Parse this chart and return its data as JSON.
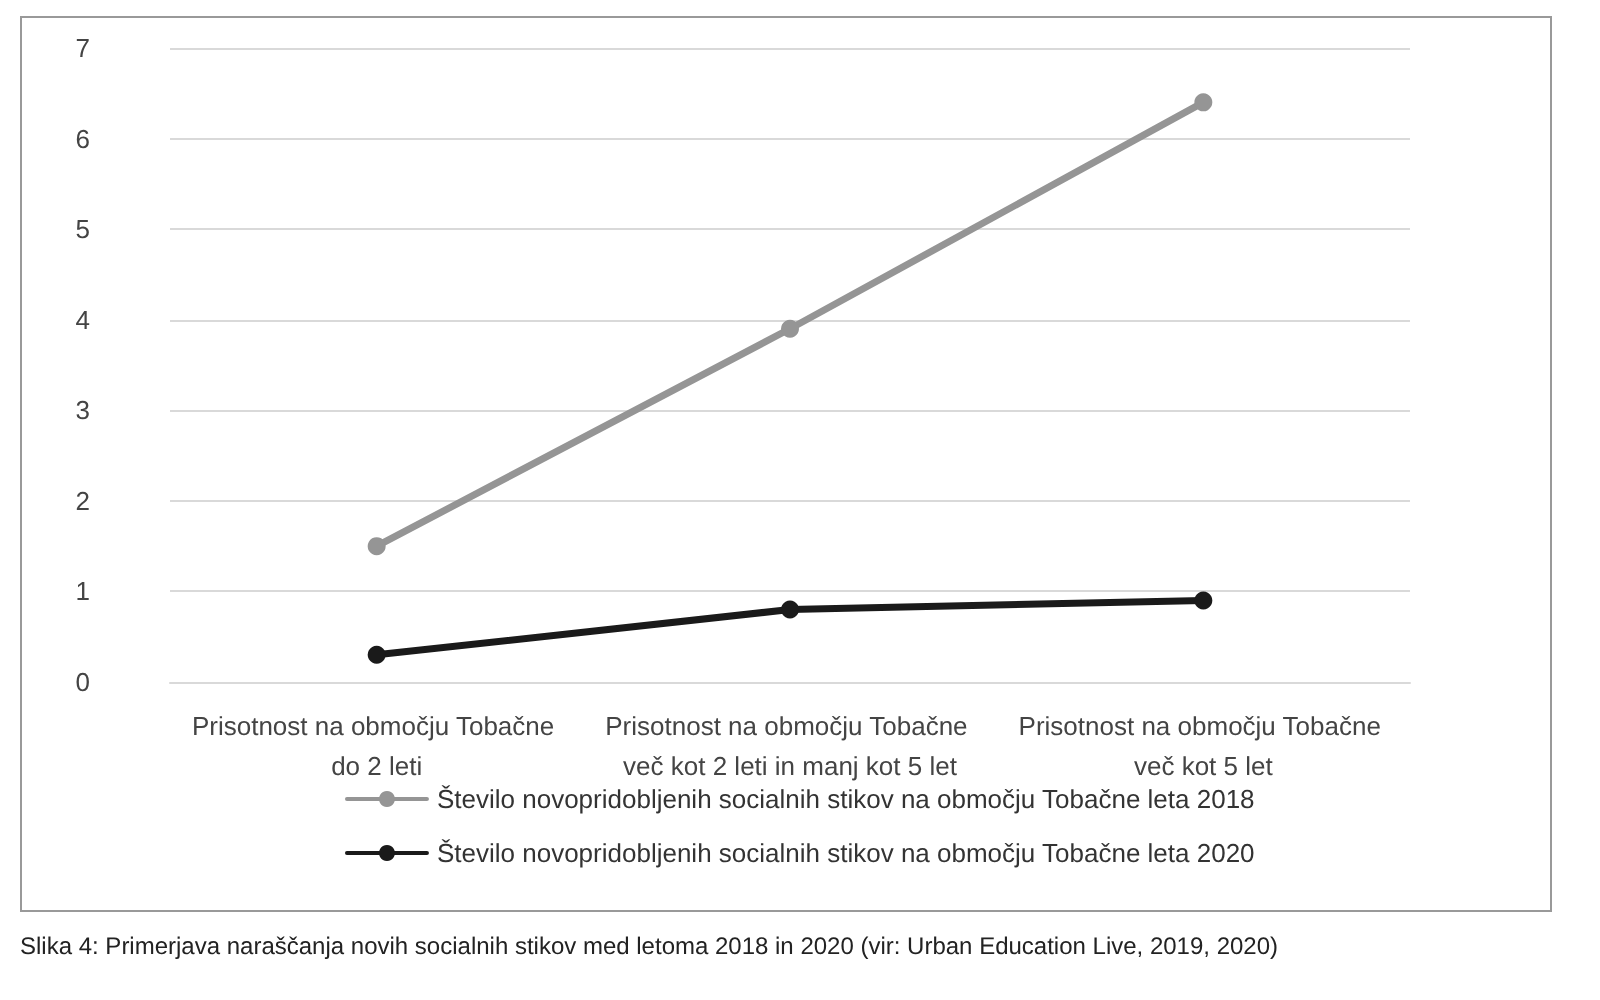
{
  "chart_data": {
    "type": "line",
    "categories": [
      "Prisotnost na območju Tobačne do 2 leti",
      "Prisotnost na območju Tobačne več kot 2 leti in manj kot 5 let",
      "Prisotnost na območju Tobačne več kot 5 let"
    ],
    "series": [
      {
        "name": "Število novopridobljenih socialnih stikov na območju Tobačne leta 2018",
        "color": "#959595",
        "values": [
          1.5,
          3.9,
          6.4
        ]
      },
      {
        "name": "Število novopridobljenih socialnih stikov na območju Tobačne leta 2020",
        "color": "#1a1a1a",
        "values": [
          0.3,
          0.8,
          0.9
        ]
      }
    ],
    "ylim": [
      0,
      7
    ],
    "yticks": [
      0,
      1,
      2,
      3,
      4,
      5,
      6,
      7
    ],
    "grid": "y",
    "legend": "bottom",
    "marker": "circle",
    "line_style": "solid",
    "annotations": [
      "Slika 4: Primerjava naraščanja novih socialnih stikov med letoma 2018 in 2020 (vir: Urban Education Live, 2019, 2020)"
    ]
  }
}
